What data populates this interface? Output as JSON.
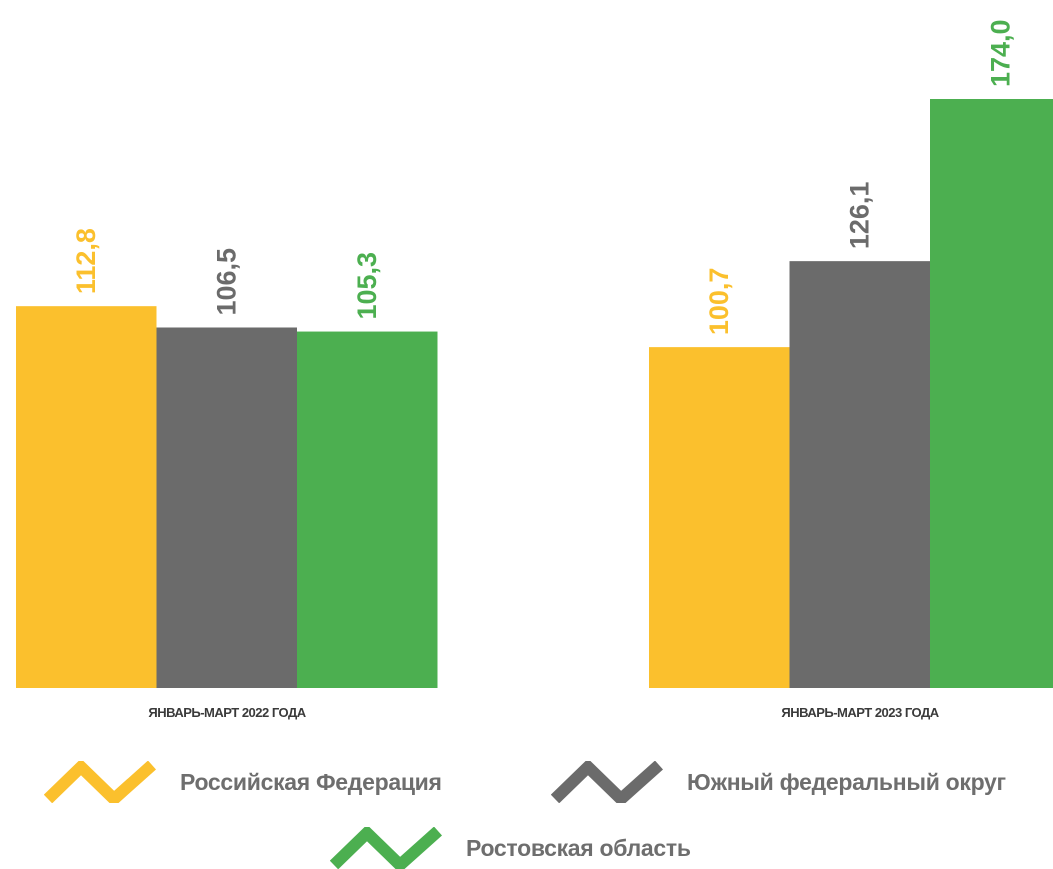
{
  "chart_data": {
    "type": "bar",
    "categories": [
      "ЯНВАРЬ-МАРТ 2022 ГОДА",
      "ЯНВАРЬ-МАРТ 2023 ГОДА"
    ],
    "series": [
      {
        "name": "Российская Федерация",
        "values": [
          112.8,
          100.7
        ],
        "labels": [
          "112,8",
          "100,7"
        ],
        "color": "#FBC02D"
      },
      {
        "name": "Южный федеральный округ",
        "values": [
          106.5,
          126.1
        ],
        "labels": [
          "106,5",
          "126,1"
        ],
        "color": "#6B6B6B"
      },
      {
        "name": "Ростовская область",
        "values": [
          105.3,
          174.0
        ],
        "labels": [
          "105,3",
          "174,0"
        ],
        "color": "#4CAF50"
      }
    ],
    "title": "",
    "xlabel": "",
    "ylabel": "",
    "ylim": [
      0,
      174
    ],
    "grid": false,
    "legend_position": "bottom"
  },
  "legend": {
    "items": [
      {
        "label": "Российская Федерация",
        "icon": "zigzag-icon",
        "color": "#FBC02D"
      },
      {
        "label": "Южный федеральный округ",
        "icon": "zigzag-icon",
        "color": "#6B6B6B"
      },
      {
        "label": "Ростовская область",
        "icon": "zigzag-icon",
        "color": "#4CAF50"
      }
    ]
  }
}
